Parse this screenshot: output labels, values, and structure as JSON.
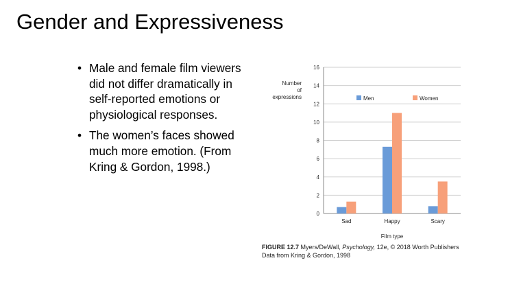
{
  "slide": {
    "title": "Gender and Expressiveness",
    "bullets": [
      "Male and female film viewers did not differ dramatically in self-reported emotions or physiological responses.",
      "The women’s faces showed much more emotion. (From Kring & Gordon, 1998.)"
    ],
    "bullet_glyph": "•"
  },
  "caption": {
    "figure_label": "FIGURE 12.7",
    "authors": "Myers/DeWall,",
    "book": "Psychology,",
    "rest": "12e, © 2018 Worth Publishers",
    "line2": "Data from Kring & Gordon, 1998"
  },
  "chart_data": {
    "type": "bar",
    "title": "",
    "ylabel_lines": [
      "Number",
      "of",
      "expressions"
    ],
    "xlabel": "Film type",
    "categories": [
      "Sad",
      "Happy",
      "Scary"
    ],
    "series": [
      {
        "name": "Men",
        "values": [
          0.7,
          7.3,
          0.8
        ],
        "color": "#6A9BD8"
      },
      {
        "name": "Women",
        "values": [
          1.3,
          11.0,
          3.5
        ],
        "color": "#F7A07A"
      }
    ],
    "ylim": [
      0,
      16
    ],
    "yticks": [
      0,
      2,
      4,
      6,
      8,
      10,
      12,
      14,
      16
    ],
    "grid": true,
    "legend": "top-center",
    "grid_color": "#CFCFCF",
    "axis_color": "#888888"
  }
}
